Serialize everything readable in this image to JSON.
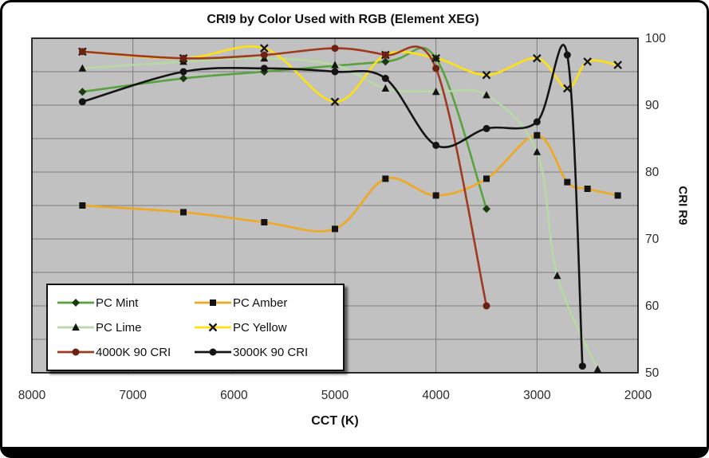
{
  "chart_data": {
    "type": "line",
    "title": "CRI9 by Color Used with RGB (Element XEG)",
    "xlabel": "CCT (K)",
    "ylabel": "CRI R9",
    "x_axis": {
      "min": 2000,
      "max": 8000,
      "reversed": true,
      "tick_values": [
        8000,
        7000,
        6000,
        5000,
        4000,
        3000,
        2000
      ],
      "tick_labels": [
        "8000",
        "7000",
        "6000",
        "5000",
        "4000",
        "3000",
        "2000"
      ]
    },
    "y_axis": {
      "min": 50,
      "max": 100,
      "minor_grid_step": 5,
      "tick_values": [
        100,
        90,
        80,
        70,
        60,
        50
      ],
      "tick_labels": [
        "100",
        "90",
        "80",
        "70",
        "60",
        "50"
      ]
    },
    "plot_bg": "#c1c1c1",
    "grid_color": "#7d7d7d",
    "legend_position": "bottom-left",
    "series": [
      {
        "name": "PC Mint",
        "color": "#58a33e",
        "marker": "diamond",
        "marker_color": "#1c3a12",
        "x": [
          7500,
          6500,
          5700,
          4500,
          4000,
          3500
        ],
        "y": [
          92,
          94,
          95,
          96.5,
          97,
          74.5
        ]
      },
      {
        "name": "PC Amber",
        "color": "#efa820",
        "marker": "square",
        "marker_color": "#141414",
        "x": [
          7500,
          6500,
          5700,
          5000,
          4500,
          4000,
          3500,
          3000,
          2700,
          2500,
          2200
        ],
        "y": [
          75,
          74,
          72.5,
          71.5,
          79,
          76.5,
          79,
          85.5,
          78.5,
          77.5,
          76.5
        ]
      },
      {
        "name": "PC Lime",
        "color": "#b7d9a4",
        "marker": "triangle",
        "marker_color": "#141414",
        "x": [
          7500,
          6500,
          5700,
          5000,
          4500,
          4000,
          3500,
          3000,
          2800,
          2400
        ],
        "y": [
          95.5,
          96.5,
          97,
          96,
          92.5,
          92,
          91.5,
          83,
          64.5,
          50.5
        ]
      },
      {
        "name": "PC Yellow",
        "color": "#ffe112",
        "marker": "x",
        "marker_color": "#141414",
        "x": [
          7500,
          6500,
          5700,
          5000,
          4500,
          4000,
          3500,
          3000,
          2700,
          2500,
          2200
        ],
        "y": [
          98,
          97,
          98.5,
          90.5,
          97.5,
          97,
          94.5,
          97,
          92.5,
          96.5,
          96
        ]
      },
      {
        "name": "4000K 90 CRI",
        "color": "#9f3a22",
        "marker": "circle",
        "marker_color": "#6b2212",
        "x": [
          7500,
          6500,
          5700,
          5000,
          4500,
          4000,
          3500
        ],
        "y": [
          98,
          97,
          97.5,
          98.5,
          97.5,
          95.5,
          60
        ]
      },
      {
        "name": "3000K 90 CRI",
        "color": "#141414",
        "marker": "circle",
        "marker_color": "#141414",
        "x": [
          7500,
          6500,
          5700,
          5000,
          4500,
          4000,
          3500,
          3000,
          2700,
          2550
        ],
        "y": [
          90.5,
          95,
          95.5,
          95,
          94,
          84,
          86.5,
          87.5,
          97.5,
          51
        ]
      }
    ]
  }
}
